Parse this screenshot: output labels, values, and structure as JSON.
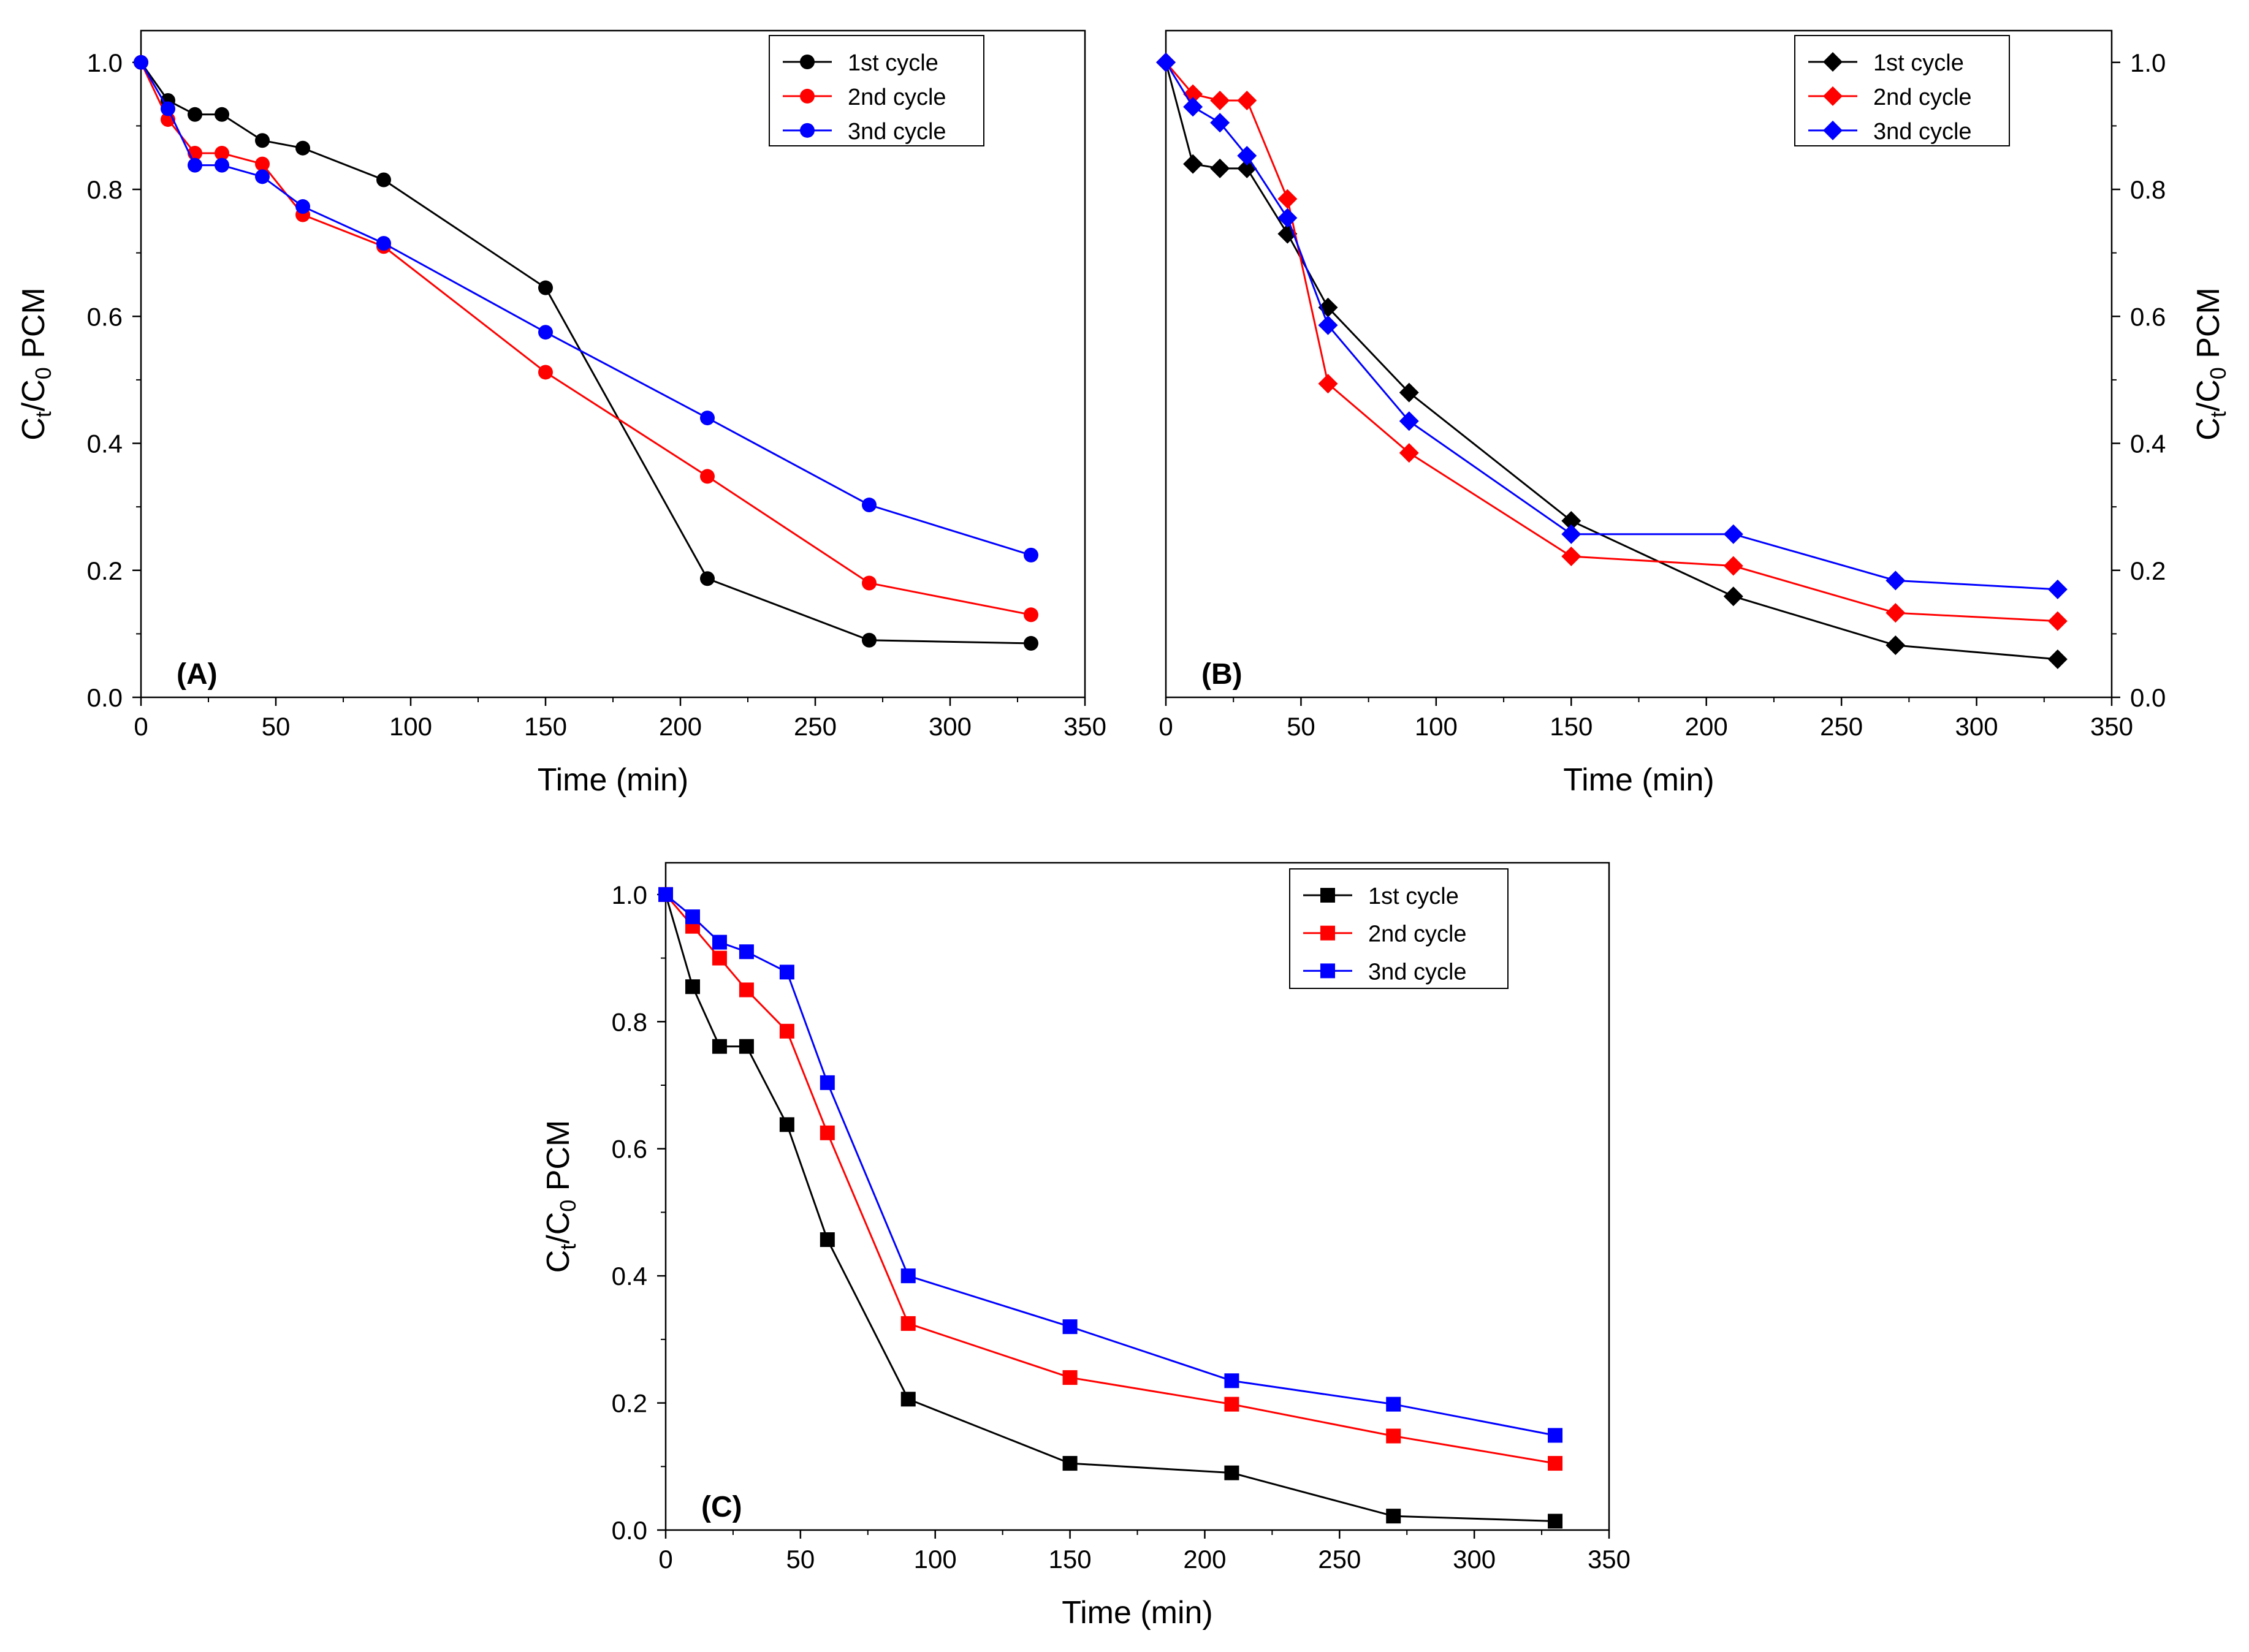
{
  "chart_data": [
    {
      "type": "line",
      "panel_label": "(A)",
      "marker": "circle",
      "xlabel": "Time (min)",
      "ylabel": {
        "main": "C",
        "sub1": "t",
        "mid": "/C",
        "sub2": "0",
        "tail": " PCM"
      },
      "ylabel_side": "left",
      "xlim": [
        0,
        350
      ],
      "ylim": [
        0,
        1.05
      ],
      "xticks": [
        "0",
        "50",
        "100",
        "150",
        "200",
        "250",
        "300",
        "350"
      ],
      "yticks": [
        "0.0",
        "0.2",
        "0.4",
        "0.6",
        "0.8",
        "1.0"
      ],
      "legend_position": "top-right",
      "x": [
        0,
        10,
        20,
        30,
        45,
        60,
        90,
        150,
        210,
        270,
        330
      ],
      "series": [
        {
          "name": "1st cycle",
          "color": "#000000",
          "values": [
            1.0,
            0.94,
            0.918,
            0.918,
            0.877,
            0.865,
            0.815,
            0.645,
            0.187,
            0.09,
            0.085
          ]
        },
        {
          "name": "2nd cycle",
          "color": "#ff0000",
          "values": [
            1.0,
            0.91,
            0.857,
            0.857,
            0.84,
            0.76,
            0.71,
            0.512,
            0.348,
            0.18,
            0.13
          ]
        },
        {
          "name": "3nd cycle",
          "color": "#0000ff",
          "values": [
            1.0,
            0.927,
            0.838,
            0.838,
            0.82,
            0.773,
            0.715,
            0.575,
            0.44,
            0.303,
            0.224
          ]
        }
      ]
    },
    {
      "type": "line",
      "panel_label": "(B)",
      "marker": "diamond",
      "xlabel": "Time (min)",
      "ylabel": {
        "main": "C",
        "sub1": "t",
        "mid": "/C",
        "sub2": "0",
        "tail": " PCM"
      },
      "ylabel_side": "right",
      "xlim": [
        0,
        350
      ],
      "ylim": [
        0,
        1.05
      ],
      "xticks": [
        "0",
        "50",
        "100",
        "150",
        "200",
        "250",
        "300",
        "350"
      ],
      "yticks": [
        "0.0",
        "0.2",
        "0.4",
        "0.6",
        "0.8",
        "1.0"
      ],
      "legend_position": "top-right",
      "x": [
        0,
        10,
        20,
        30,
        45,
        60,
        90,
        150,
        210,
        270,
        330
      ],
      "series": [
        {
          "name": "1st cycle",
          "color": "#000000",
          "values": [
            1.0,
            0.84,
            0.833,
            0.833,
            0.73,
            0.614,
            0.48,
            0.278,
            0.159,
            0.082,
            0.06
          ]
        },
        {
          "name": "2nd cycle",
          "color": "#ff0000",
          "values": [
            1.0,
            0.95,
            0.94,
            0.94,
            0.785,
            0.494,
            0.385,
            0.222,
            0.207,
            0.133,
            0.12
          ]
        },
        {
          "name": "3nd cycle",
          "color": "#0000ff",
          "values": [
            1.0,
            0.93,
            0.905,
            0.853,
            0.755,
            0.586,
            0.435,
            0.257,
            0.257,
            0.184,
            0.17
          ]
        }
      ]
    },
    {
      "type": "line",
      "panel_label": "(C)",
      "marker": "square",
      "xlabel": "Time (min)",
      "ylabel": {
        "main": "C",
        "sub1": "t",
        "mid": "/C",
        "sub2": "0",
        "tail": " PCM"
      },
      "ylabel_side": "left",
      "xlim": [
        0,
        350
      ],
      "ylim": [
        0,
        1.05
      ],
      "xticks": [
        "0",
        "50",
        "100",
        "150",
        "200",
        "250",
        "300",
        "350"
      ],
      "yticks": [
        "0.0",
        "0.2",
        "0.4",
        "0.6",
        "0.8",
        "1.0"
      ],
      "legend_position": "top-right",
      "x": [
        0,
        10,
        20,
        30,
        45,
        60,
        90,
        150,
        210,
        270,
        330
      ],
      "series": [
        {
          "name": "1st cycle",
          "color": "#000000",
          "values": [
            1.0,
            0.855,
            0.761,
            0.761,
            0.638,
            0.457,
            0.206,
            0.105,
            0.09,
            0.022,
            0.014
          ]
        },
        {
          "name": "2nd cycle",
          "color": "#ff0000",
          "values": [
            1.0,
            0.95,
            0.9,
            0.85,
            0.785,
            0.625,
            0.325,
            0.24,
            0.198,
            0.148,
            0.105
          ]
        },
        {
          "name": "3nd cycle",
          "color": "#0000ff",
          "values": [
            1.0,
            0.965,
            0.925,
            0.91,
            0.878,
            0.704,
            0.4,
            0.32,
            0.235,
            0.198,
            0.149
          ]
        }
      ]
    }
  ]
}
